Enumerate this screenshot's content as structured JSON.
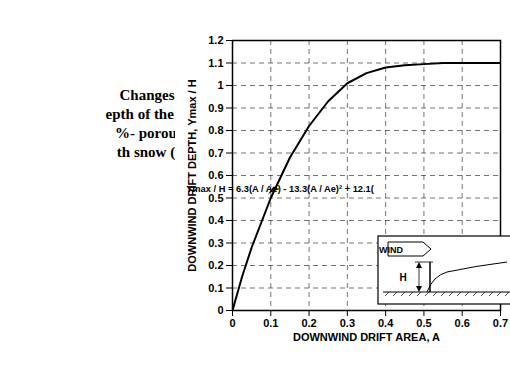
{
  "chart_data": {
    "type": "line",
    "caption": [
      "Changes in the",
      "epth of the leeward",
      "%- porous snow",
      "th snow (Tabler"
    ],
    "x_label": "DOWNWIND DRIFT AREA, A",
    "y_label": "DOWNWIND DRIFT DEPTH, Ymax / H",
    "annotations": [
      "Ymax / H = 6.3(A / Ae) - 13.3(A / Ae)² + 12.1("
    ],
    "inset": {
      "labels": [
        "WIND",
        "H"
      ]
    },
    "x": [
      0,
      0.025,
      0.05,
      0.075,
      0.1,
      0.125,
      0.15,
      0.175,
      0.2,
      0.25,
      0.3,
      0.35,
      0.4,
      0.45,
      0.5,
      0.55,
      0.6,
      0.65,
      0.7
    ],
    "series": [
      {
        "name": "Ymax / H",
        "color": "#000000",
        "values": [
          0,
          0.15,
          0.28,
          0.39,
          0.5,
          0.59,
          0.68,
          0.75,
          0.82,
          0.93,
          1.01,
          1.055,
          1.08,
          1.09,
          1.095,
          1.1,
          1.1,
          1.1,
          1.1
        ]
      }
    ],
    "xlim": [
      0,
      0.7
    ],
    "ylim": [
      0,
      1.2
    ],
    "xticks": [
      0,
      0.1,
      0.2,
      0.3,
      0.4,
      0.5,
      0.6,
      0.7
    ],
    "yticks": [
      0,
      0.1,
      0.2,
      0.3,
      0.4,
      0.5,
      0.6,
      0.7,
      0.8,
      0.9,
      1,
      1.1,
      1.2
    ],
    "grid": true
  }
}
